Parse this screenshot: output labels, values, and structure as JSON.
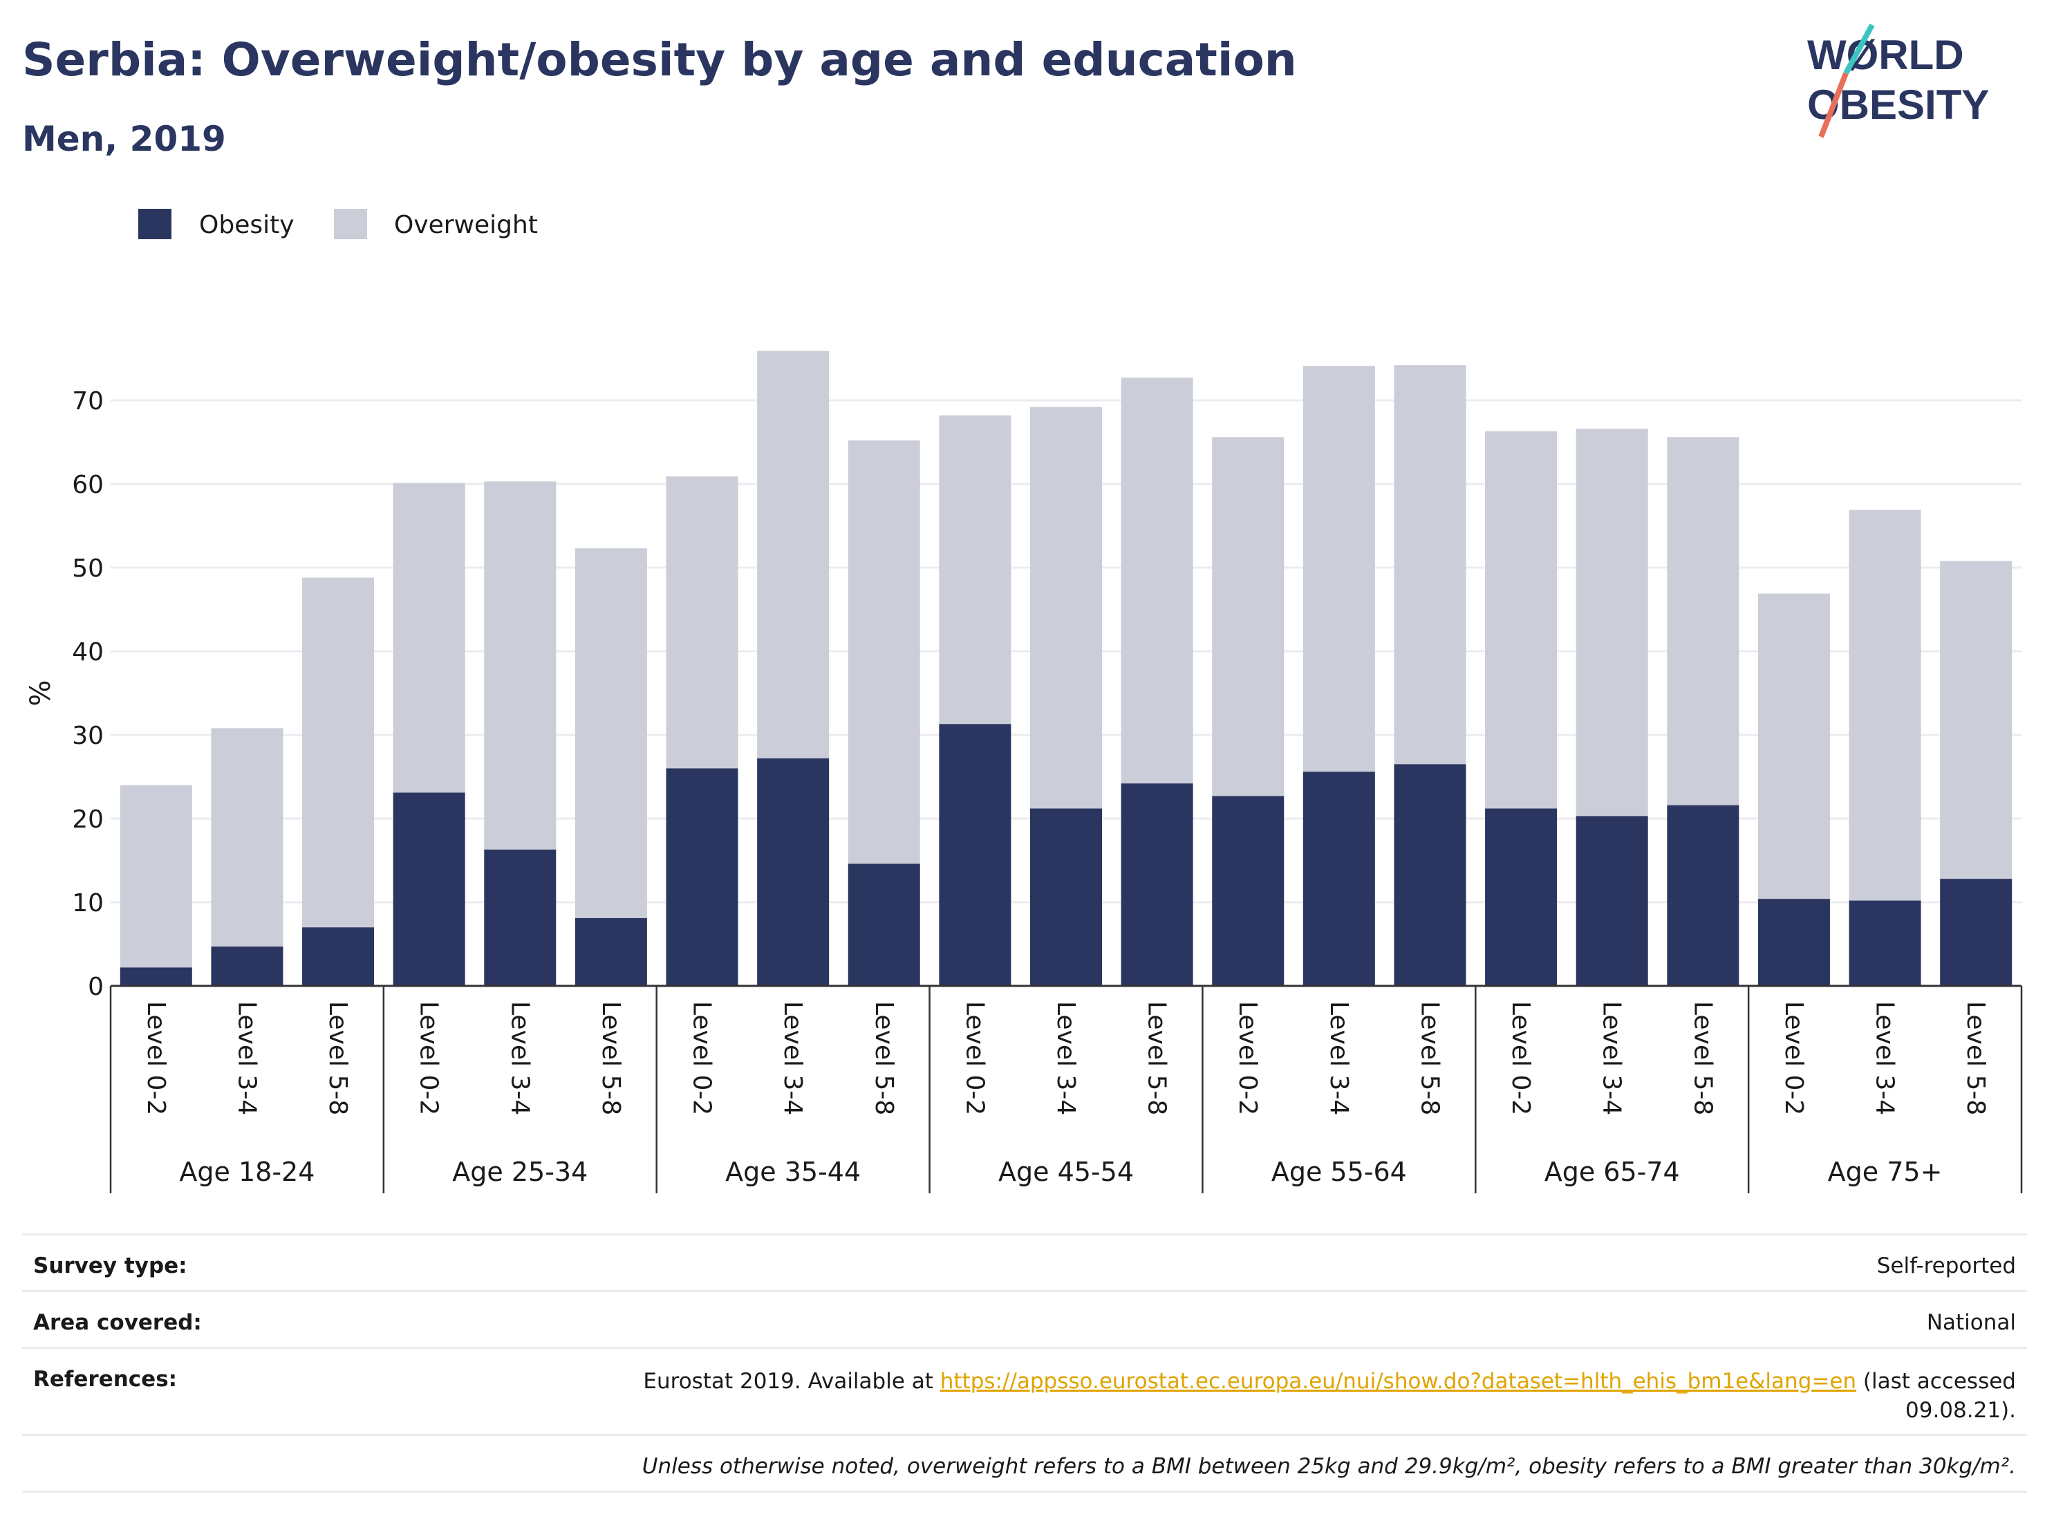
{
  "title": "Serbia: Overweight/obesity by age and education",
  "subtitle": "Men, 2019",
  "logo": {
    "line1": "WØRLD",
    "line2": "OBESITY",
    "slash_colors": [
      "#3cc5c0",
      "#e8705a"
    ]
  },
  "colors": {
    "obesity": "#2a3560",
    "overweight": "#cbcdd8",
    "title": "#2a3560",
    "link": "#e0a400"
  },
  "chart_data": {
    "type": "bar",
    "stacked": true,
    "ylabel": "%",
    "ylim": [
      0,
      78
    ],
    "yticks": [
      0,
      10,
      20,
      30,
      40,
      50,
      60,
      70
    ],
    "grid": true,
    "legend": {
      "placement": "top-left",
      "items": [
        "Obesity",
        "Overweight"
      ]
    },
    "groups": [
      "Age 18-24",
      "Age 25-34",
      "Age 35-44",
      "Age 45-54",
      "Age 55-64",
      "Age 65-74",
      "Age 75+"
    ],
    "subcategories": [
      "Level 0-2",
      "Level 3-4",
      "Level 5-8"
    ],
    "series": [
      {
        "name": "Obesity",
        "values": [
          2.2,
          4.7,
          7.0,
          23.1,
          16.3,
          8.1,
          26.0,
          27.2,
          14.6,
          31.3,
          21.2,
          24.2,
          22.7,
          25.6,
          26.5,
          21.2,
          20.3,
          21.6,
          10.4,
          10.2,
          12.8
        ]
      },
      {
        "name": "Overweight",
        "values": [
          21.8,
          26.1,
          41.8,
          37.0,
          44.0,
          44.2,
          34.9,
          48.7,
          50.6,
          36.9,
          48.0,
          48.5,
          42.9,
          48.5,
          47.7,
          45.1,
          46.3,
          44.0,
          36.5,
          46.7,
          38.0
        ]
      }
    ]
  },
  "info": [
    {
      "label": "Survey type:",
      "value": "Self-reported"
    },
    {
      "label": "Area covered:",
      "value": "National"
    },
    {
      "label": "References:",
      "value_prefix": "Eurostat 2019. Available at ",
      "link": "https://appsso.eurostat.ec.europa.eu/nui/show.do?dataset=hlth_ehis_bm1e&lang=en",
      "value_suffix": " (last accessed 09.08.21)."
    }
  ],
  "footnote": "Unless otherwise noted, overweight refers to a BMI between 25kg and 29.9kg/m², obesity refers to a BMI greater than 30kg/m²."
}
